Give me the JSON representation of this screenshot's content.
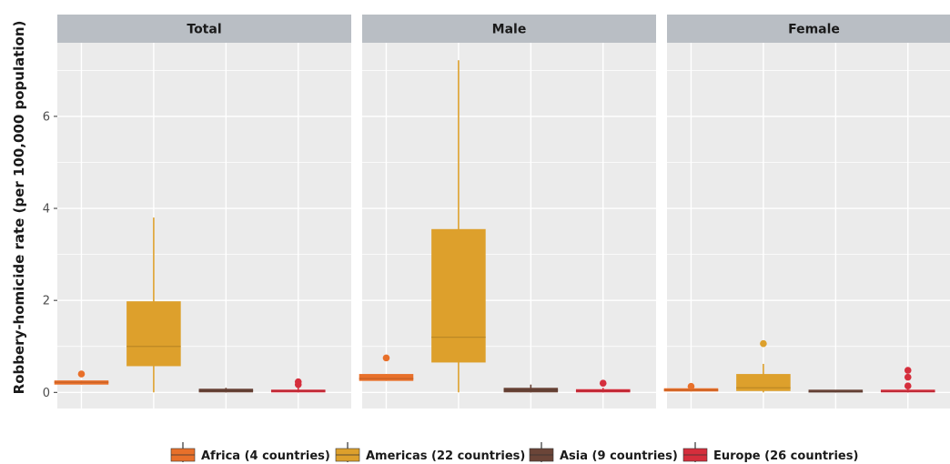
{
  "chart_data": {
    "type": "boxplot",
    "ylabel": "Robbery-homicide rate (per 100,000 population)",
    "xlabel": "",
    "ylim": [
      -0.35,
      7.6
    ],
    "y_ticks": [
      0,
      2,
      4,
      6
    ],
    "grid": true,
    "legend_position": "bottom",
    "groups": [
      {
        "name": "Africa (4 countries)",
        "color": "#E8702A"
      },
      {
        "name": "Americas (22 countries)",
        "color": "#DDA02C"
      },
      {
        "name": "Asia (9 countries)",
        "color": "#6B4538"
      },
      {
        "name": "Europe (26 countries)",
        "color": "#D52E3C"
      }
    ],
    "panels": [
      {
        "title": "Total",
        "boxes": [
          {
            "group": "Africa (4 countries)",
            "min": 0.17,
            "q1": 0.17,
            "median": 0.22,
            "q3": 0.26,
            "max": 0.26,
            "outliers": [
              0.4
            ]
          },
          {
            "group": "Americas (22 countries)",
            "min": 0.0,
            "q1": 0.57,
            "median": 1.0,
            "q3": 1.98,
            "max": 3.8,
            "outliers": []
          },
          {
            "group": "Asia (9 countries)",
            "min": 0.0,
            "q1": 0.0,
            "median": 0.04,
            "q3": 0.08,
            "max": 0.1,
            "outliers": []
          },
          {
            "group": "Europe (26 countries)",
            "min": 0.0,
            "q1": 0.0,
            "median": 0.03,
            "q3": 0.06,
            "max": 0.1,
            "outliers": [
              0.17,
              0.23
            ]
          }
        ]
      },
      {
        "title": "Male",
        "boxes": [
          {
            "group": "Africa (4 countries)",
            "min": 0.25,
            "q1": 0.25,
            "median": 0.3,
            "q3": 0.4,
            "max": 0.4,
            "outliers": [
              0.75
            ]
          },
          {
            "group": "Americas (22 countries)",
            "min": 0.0,
            "q1": 0.65,
            "median": 1.2,
            "q3": 3.55,
            "max": 7.22,
            "outliers": []
          },
          {
            "group": "Asia (9 countries)",
            "min": 0.0,
            "q1": 0.0,
            "median": 0.05,
            "q3": 0.1,
            "max": 0.17,
            "outliers": []
          },
          {
            "group": "Europe (26 countries)",
            "min": 0.0,
            "q1": 0.0,
            "median": 0.03,
            "q3": 0.07,
            "max": 0.1,
            "outliers": [
              0.2
            ]
          }
        ]
      },
      {
        "title": "Female",
        "boxes": [
          {
            "group": "Africa (4 countries)",
            "min": 0.02,
            "q1": 0.02,
            "median": 0.05,
            "q3": 0.09,
            "max": 0.09,
            "outliers": [
              0.13
            ]
          },
          {
            "group": "Americas (22 countries)",
            "min": 0.0,
            "q1": 0.03,
            "median": 0.1,
            "q3": 0.4,
            "max": 0.62,
            "outliers": [
              1.06
            ]
          },
          {
            "group": "Asia (9 countries)",
            "min": 0.0,
            "q1": 0.0,
            "median": 0.01,
            "q3": 0.03,
            "max": 0.04,
            "outliers": []
          },
          {
            "group": "Europe (26 countries)",
            "min": 0.0,
            "q1": 0.0,
            "median": 0.02,
            "q3": 0.05,
            "max": 0.07,
            "outliers": [
              0.14,
              0.33,
              0.48
            ]
          }
        ]
      }
    ]
  }
}
